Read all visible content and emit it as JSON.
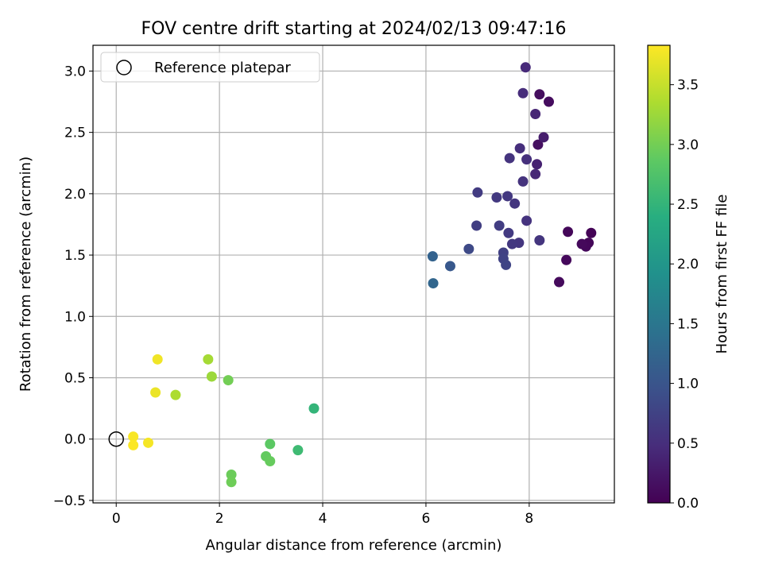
{
  "chart_data": {
    "type": "scatter",
    "title": "FOV centre drift starting at 2024/02/13 09:47:16",
    "xlabel": "Angular distance from reference (arcmin)",
    "ylabel": "Rotation from reference (arcmin)",
    "xlim": [
      -0.45,
      9.65
    ],
    "ylim": [
      -0.52,
      3.21
    ],
    "xticks": [
      0,
      2,
      4,
      6,
      8
    ],
    "xtick_labels": [
      "0",
      "2",
      "4",
      "6",
      "8"
    ],
    "yticks": [
      -0.5,
      0.0,
      0.5,
      1.0,
      1.5,
      2.0,
      2.5,
      3.0
    ],
    "ytick_labels": [
      "−0.5",
      "0.0",
      "0.5",
      "1.0",
      "1.5",
      "2.0",
      "2.5",
      "3.0"
    ],
    "grid": true,
    "legend": {
      "position": "top-left",
      "entries": [
        "Reference platepar"
      ]
    },
    "reference_point": {
      "x": 0,
      "y": 0,
      "label": "Reference platepar"
    },
    "colorbar": {
      "label": "Hours from first FF file",
      "colormap": "viridis",
      "range": [
        0,
        3.83
      ],
      "ticks": [
        0.0,
        0.5,
        1.0,
        1.5,
        2.0,
        2.5,
        3.0,
        3.5
      ],
      "tick_labels": [
        "0.0",
        "0.5",
        "1.0",
        "1.5",
        "2.0",
        "2.5",
        "3.0",
        "3.5"
      ]
    },
    "points": [
      {
        "x": 9.2,
        "y": 1.68,
        "c": 0.02
      },
      {
        "x": 9.15,
        "y": 1.6,
        "c": 0.05
      },
      {
        "x": 9.1,
        "y": 1.57,
        "c": 0.07
      },
      {
        "x": 9.02,
        "y": 1.59,
        "c": 0.09
      },
      {
        "x": 8.75,
        "y": 1.69,
        "c": 0.06
      },
      {
        "x": 8.72,
        "y": 1.46,
        "c": 0.08
      },
      {
        "x": 8.58,
        "y": 1.28,
        "c": 0.1
      },
      {
        "x": 8.38,
        "y": 2.75,
        "c": 0.12
      },
      {
        "x": 8.2,
        "y": 2.81,
        "c": 0.14
      },
      {
        "x": 8.17,
        "y": 2.4,
        "c": 0.16
      },
      {
        "x": 8.28,
        "y": 2.46,
        "c": 0.3
      },
      {
        "x": 8.15,
        "y": 2.24,
        "c": 0.35
      },
      {
        "x": 8.12,
        "y": 2.65,
        "c": 0.4
      },
      {
        "x": 8.12,
        "y": 2.16,
        "c": 0.42
      },
      {
        "x": 7.93,
        "y": 3.03,
        "c": 0.45
      },
      {
        "x": 7.88,
        "y": 2.82,
        "c": 0.48
      },
      {
        "x": 7.82,
        "y": 2.37,
        "c": 0.5
      },
      {
        "x": 7.95,
        "y": 2.28,
        "c": 0.52
      },
      {
        "x": 7.88,
        "y": 2.1,
        "c": 0.55
      },
      {
        "x": 7.62,
        "y": 2.29,
        "c": 0.57
      },
      {
        "x": 7.72,
        "y": 1.92,
        "c": 0.6
      },
      {
        "x": 7.58,
        "y": 1.98,
        "c": 0.62
      },
      {
        "x": 7.37,
        "y": 1.97,
        "c": 0.64
      },
      {
        "x": 7.0,
        "y": 2.01,
        "c": 0.66
      },
      {
        "x": 8.2,
        "y": 1.62,
        "c": 0.58
      },
      {
        "x": 7.95,
        "y": 1.78,
        "c": 0.56
      },
      {
        "x": 7.8,
        "y": 1.6,
        "c": 0.6
      },
      {
        "x": 7.67,
        "y": 1.59,
        "c": 0.62
      },
      {
        "x": 7.6,
        "y": 1.68,
        "c": 0.65
      },
      {
        "x": 7.42,
        "y": 1.74,
        "c": 0.68
      },
      {
        "x": 6.98,
        "y": 1.74,
        "c": 0.7
      },
      {
        "x": 7.5,
        "y": 1.52,
        "c": 0.72
      },
      {
        "x": 7.5,
        "y": 1.47,
        "c": 0.75
      },
      {
        "x": 7.55,
        "y": 1.42,
        "c": 0.78
      },
      {
        "x": 6.83,
        "y": 1.55,
        "c": 0.85
      },
      {
        "x": 6.47,
        "y": 1.41,
        "c": 1.05
      },
      {
        "x": 6.13,
        "y": 1.49,
        "c": 1.2
      },
      {
        "x": 6.14,
        "y": 1.27,
        "c": 1.25
      },
      {
        "x": 3.83,
        "y": 0.25,
        "c": 2.5
      },
      {
        "x": 3.52,
        "y": -0.09,
        "c": 2.6
      },
      {
        "x": 2.98,
        "y": -0.04,
        "c": 2.85
      },
      {
        "x": 2.9,
        "y": -0.14,
        "c": 2.9
      },
      {
        "x": 2.98,
        "y": -0.18,
        "c": 2.92
      },
      {
        "x": 2.23,
        "y": -0.29,
        "c": 2.95
      },
      {
        "x": 2.23,
        "y": -0.35,
        "c": 2.97
      },
      {
        "x": 2.17,
        "y": 0.48,
        "c": 3.0
      },
      {
        "x": 1.85,
        "y": 0.51,
        "c": 3.25
      },
      {
        "x": 1.78,
        "y": 0.65,
        "c": 3.3
      },
      {
        "x": 1.15,
        "y": 0.36,
        "c": 3.35
      },
      {
        "x": 0.8,
        "y": 0.65,
        "c": 3.75
      },
      {
        "x": 0.76,
        "y": 0.38,
        "c": 3.72
      },
      {
        "x": 0.62,
        "y": -0.03,
        "c": 3.78
      },
      {
        "x": 0.33,
        "y": 0.02,
        "c": 3.8
      },
      {
        "x": 0.33,
        "y": -0.05,
        "c": 3.82
      }
    ]
  }
}
